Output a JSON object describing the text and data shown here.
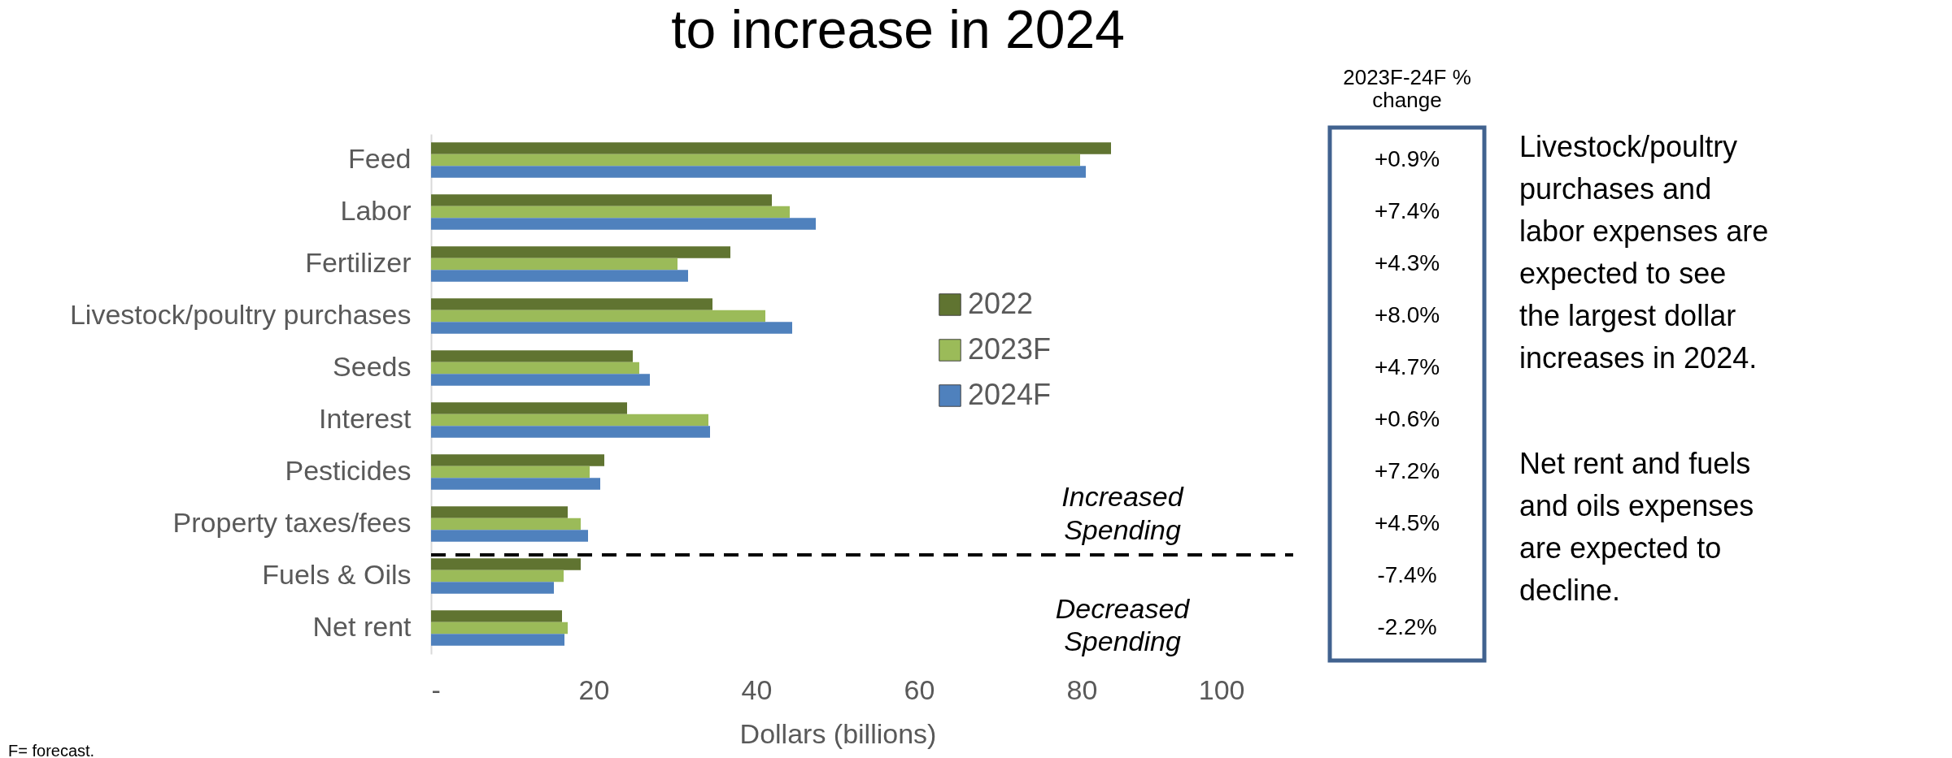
{
  "chart_data": {
    "type": "bar",
    "orientation": "horizontal",
    "title": "to increase in 2024",
    "xlabel": "Dollars (billions)",
    "categories": [
      "Feed",
      "Labor",
      "Fertilizer",
      "Livestock/poultry purchases",
      "Seeds",
      "Interest",
      "Pesticides",
      "Property taxes/fees",
      "Fuels & Oils",
      "Net rent"
    ],
    "series": [
      {
        "name": "2022",
        "color": "#607431",
        "values": [
          83.6,
          41.9,
          36.8,
          34.6,
          24.8,
          24.1,
          21.3,
          16.8,
          18.4,
          16.1
        ]
      },
      {
        "name": "2023F",
        "color": "#9bbb59",
        "values": [
          79.8,
          44.1,
          30.3,
          41.1,
          25.6,
          34.1,
          19.5,
          18.4,
          16.3,
          16.8
        ]
      },
      {
        "name": "2024F",
        "color": "#4f81bd",
        "values": [
          80.5,
          47.3,
          31.6,
          44.4,
          26.9,
          34.3,
          20.8,
          19.3,
          15.1,
          16.4
        ]
      }
    ],
    "xlim": [
      0,
      100
    ],
    "xticks": [
      {
        "value": 0,
        "label": "-"
      },
      20,
      40,
      60,
      80,
      100
    ],
    "legend": "right",
    "annotations": [
      "F= forecast.",
      "Increased Spending",
      "Decreased Spending",
      "2023F-24F  % change",
      "+0.9%",
      "+7.4%",
      "+4.3%",
      "+8.0%",
      "+4.7%",
      "+0.6%",
      "+7.2%",
      "+4.5%",
      "-7.4%",
      "-2.2%",
      "Livestock/poultry purchases and labor expenses are expected to see the largest dollar increases in 2024.",
      "Net rent and fuels and oils expenses are expected to decline."
    ]
  }
}
